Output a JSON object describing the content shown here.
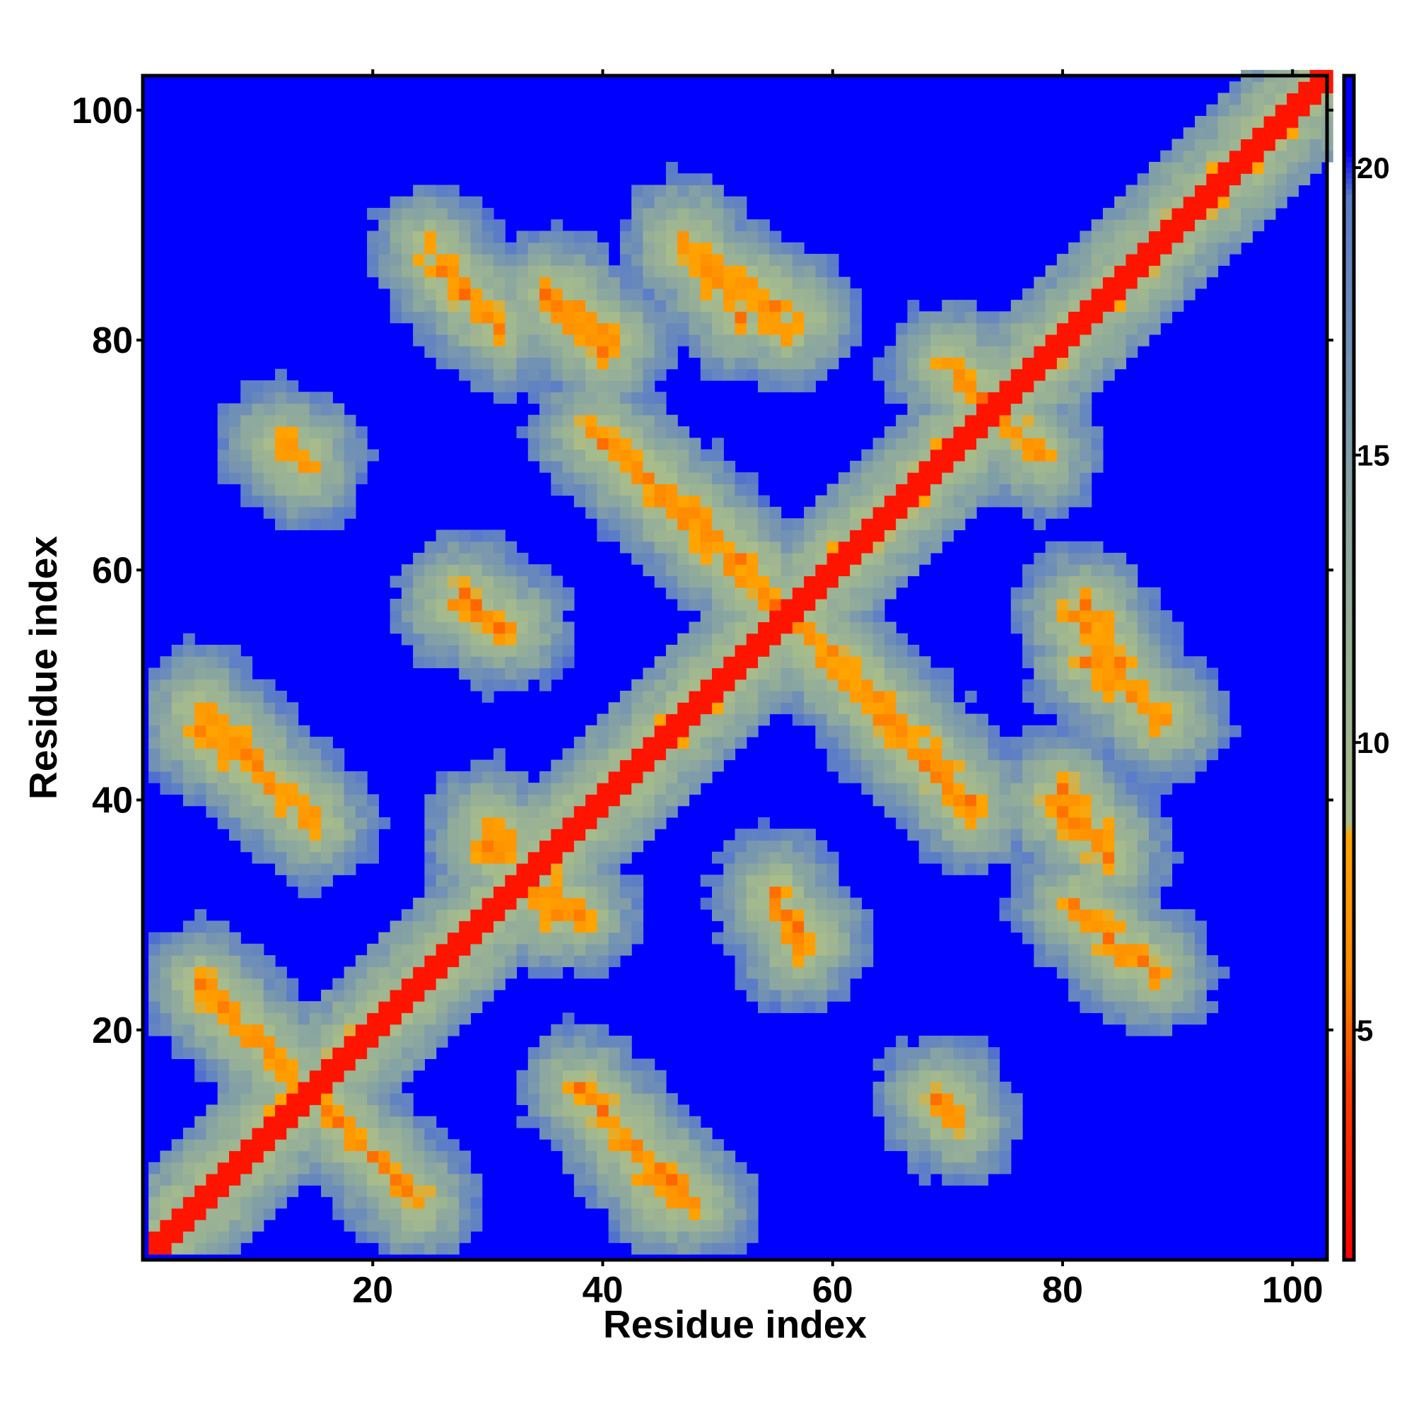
{
  "chart_data": {
    "type": "heatmap",
    "title": "",
    "xlabel": "Residue index",
    "ylabel": "Residue index",
    "n_residues": 103,
    "xlim": [
      1,
      103
    ],
    "ylim": [
      1,
      103
    ],
    "x_ticks": [
      20,
      40,
      60,
      80,
      100
    ],
    "y_ticks": [
      20,
      40,
      60,
      80,
      100
    ],
    "colorbar": {
      "range": [
        1,
        21.6
      ],
      "ticks": [
        5,
        10,
        15,
        20
      ],
      "stops": [
        {
          "value": 1.0,
          "color": "#ff0000"
        },
        {
          "value": 4.0,
          "color": "#ff3c00"
        },
        {
          "value": 6.0,
          "color": "#ff8a00"
        },
        {
          "value": 8.4,
          "color": "#ffa500"
        },
        {
          "value": 8.6,
          "color": "#a9bd8a"
        },
        {
          "value": 14.0,
          "color": "#8aa6a0"
        },
        {
          "value": 19.5,
          "color": "#5a7cc8"
        },
        {
          "value": 20.3,
          "color": "#0000ff"
        },
        {
          "value": 21.6,
          "color": "#0000ff"
        }
      ]
    },
    "cap_value": 21,
    "diagonal_band": {
      "value": 2.0,
      "halfwidth": 1.6
    },
    "contact_bands": [
      {
        "from": [
          5,
          48
        ],
        "to": [
          15,
          38
        ]
      },
      {
        "from": [
          5,
          24
        ],
        "to": [
          22,
          7
        ]
      },
      {
        "from": [
          28,
          58
        ],
        "to": [
          31,
          55
        ]
      },
      {
        "from": [
          26,
          86
        ],
        "to": [
          31,
          81
        ]
      },
      {
        "from": [
          35,
          84
        ],
        "to": [
          40,
          79
        ]
      },
      {
        "from": [
          40,
          72
        ],
        "to": [
          53,
          60
        ]
      },
      {
        "from": [
          47,
          88
        ],
        "to": [
          56,
          81
        ]
      },
      {
        "from": [
          39,
          14
        ],
        "to": [
          46,
          5
        ]
      },
      {
        "from": [
          57,
          55
        ],
        "to": [
          72,
          39
        ]
      },
      {
        "from": [
          55,
          32
        ],
        "to": [
          57,
          27
        ]
      },
      {
        "from": [
          80,
          41
        ],
        "to": [
          84,
          36
        ]
      },
      {
        "from": [
          82,
          30
        ],
        "to": [
          88,
          25
        ]
      },
      {
        "from": [
          82,
          52
        ],
        "to": [
          89,
          47
        ]
      },
      {
        "from": [
          82,
          57
        ],
        "to": [
          85,
          52
        ]
      },
      {
        "from": [
          12,
          71
        ],
        "to": [
          14,
          69
        ]
      },
      {
        "from": [
          70,
          14
        ],
        "to": [
          71,
          12
        ]
      },
      {
        "from": [
          30,
          38
        ],
        "to": [
          36,
          30
        ]
      },
      {
        "from": [
          70,
          78
        ],
        "to": [
          78,
          70
        ]
      }
    ]
  }
}
